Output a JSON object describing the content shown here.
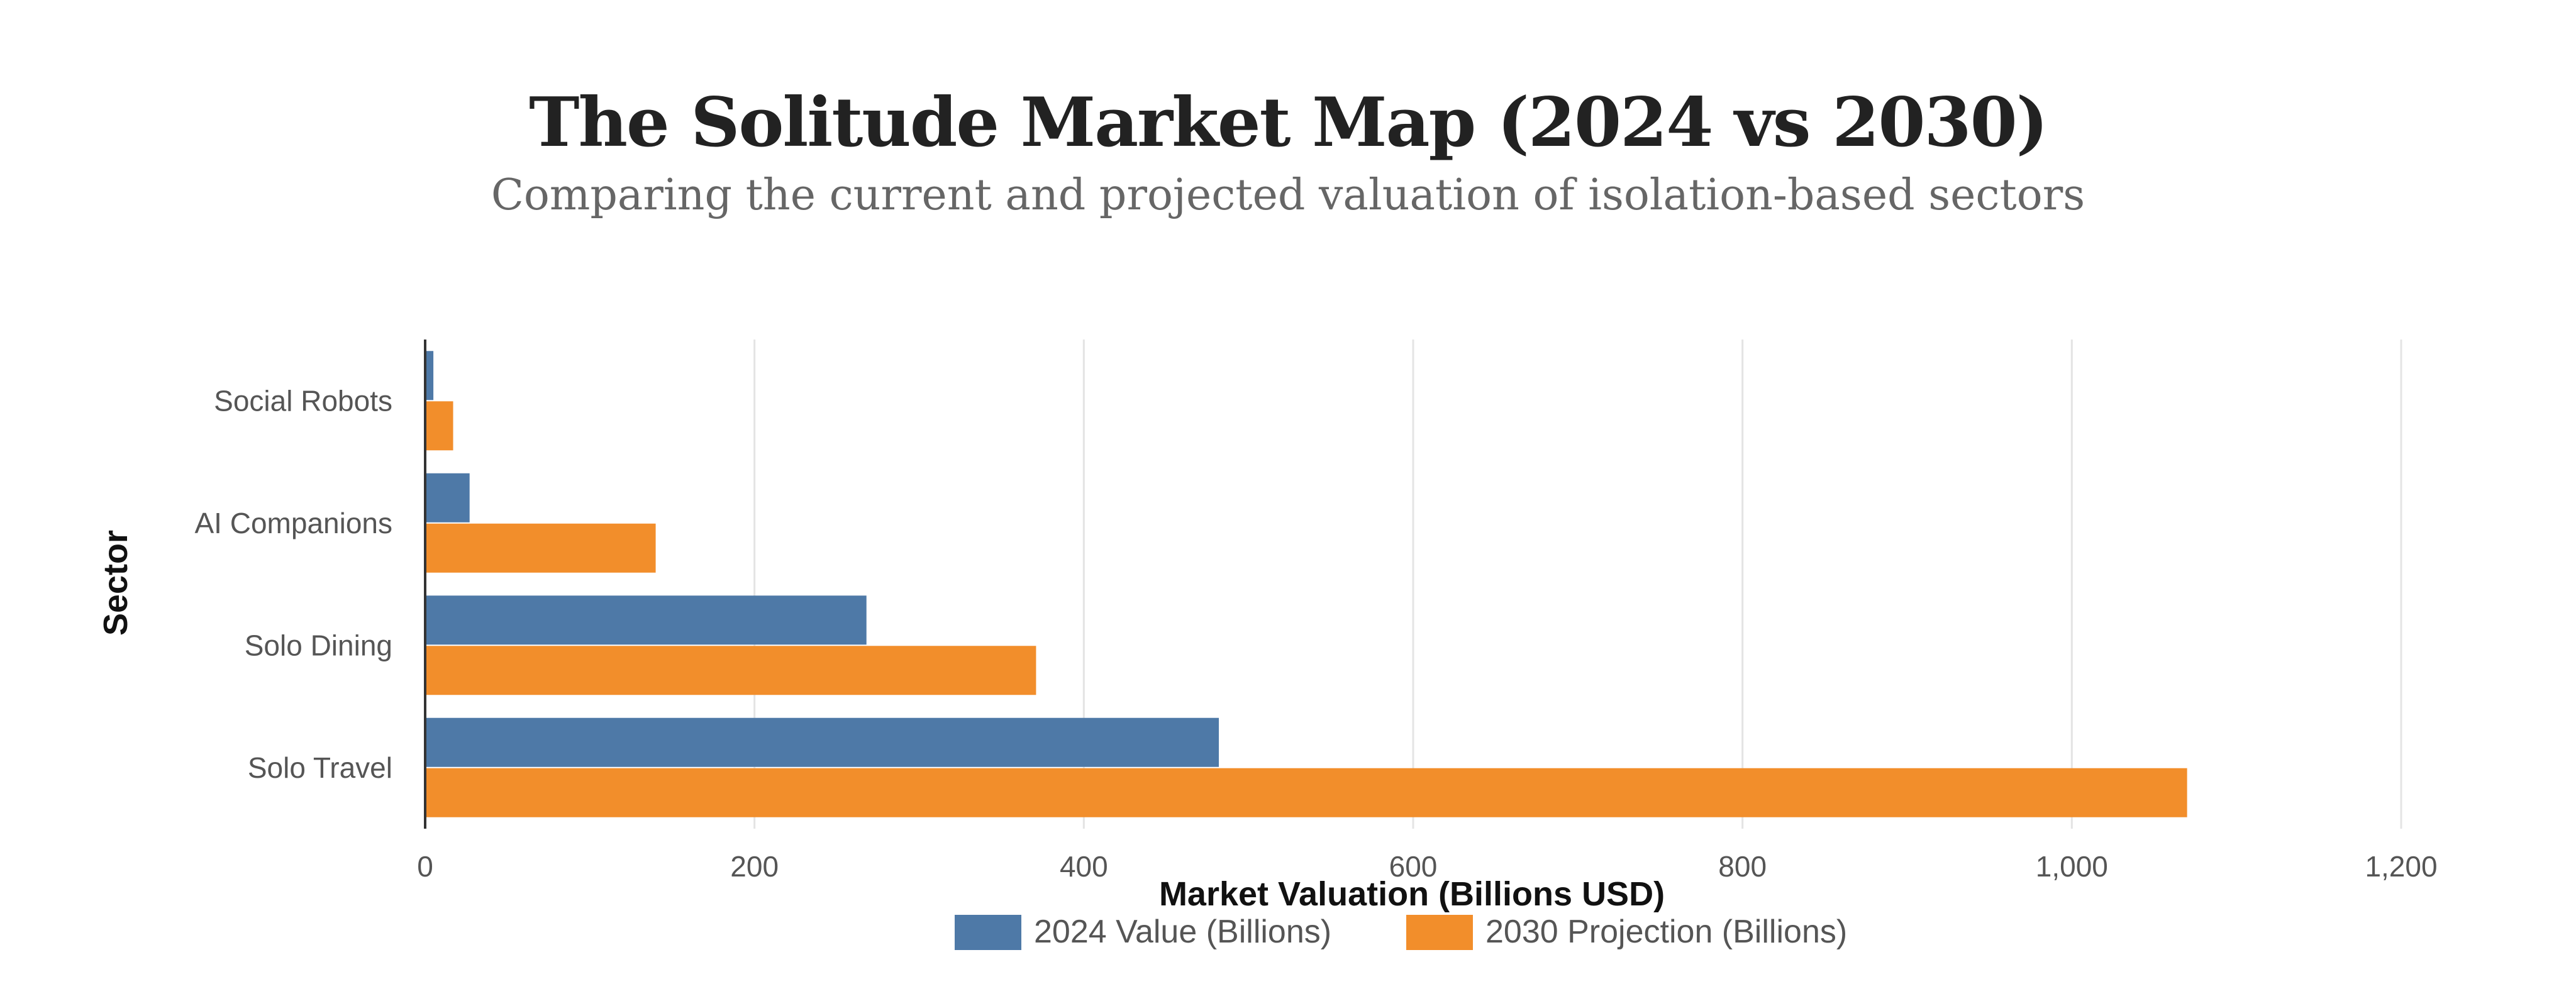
{
  "chart_data": {
    "type": "bar",
    "orientation": "horizontal",
    "title": "The Solitude Market Map (2024 vs 2030)",
    "subtitle": "Comparing the current and projected valuation of isolation-based sectors",
    "xlabel": "Market Valuation (Billions USD)",
    "ylabel": "Sector",
    "categories": [
      "Social Robots",
      "AI Companions",
      "Solo Dining",
      "Solo Travel"
    ],
    "series": [
      {
        "name": "2024 Value (Billions)",
        "color": "#4e79a7",
        "values": [
          5,
          27,
          268,
          482
        ]
      },
      {
        "name": "2030 Projection (Billions)",
        "color": "#f28e2b",
        "values": [
          17,
          140,
          371,
          1070
        ]
      }
    ],
    "xlim": [
      0,
      1200
    ],
    "xticks": [
      0,
      200,
      400,
      600,
      800,
      1000,
      1200
    ],
    "xtick_labels": [
      "0",
      "200",
      "400",
      "600",
      "800",
      "1,000",
      "1,200"
    ],
    "grid": true,
    "legend_position": "bottom"
  }
}
